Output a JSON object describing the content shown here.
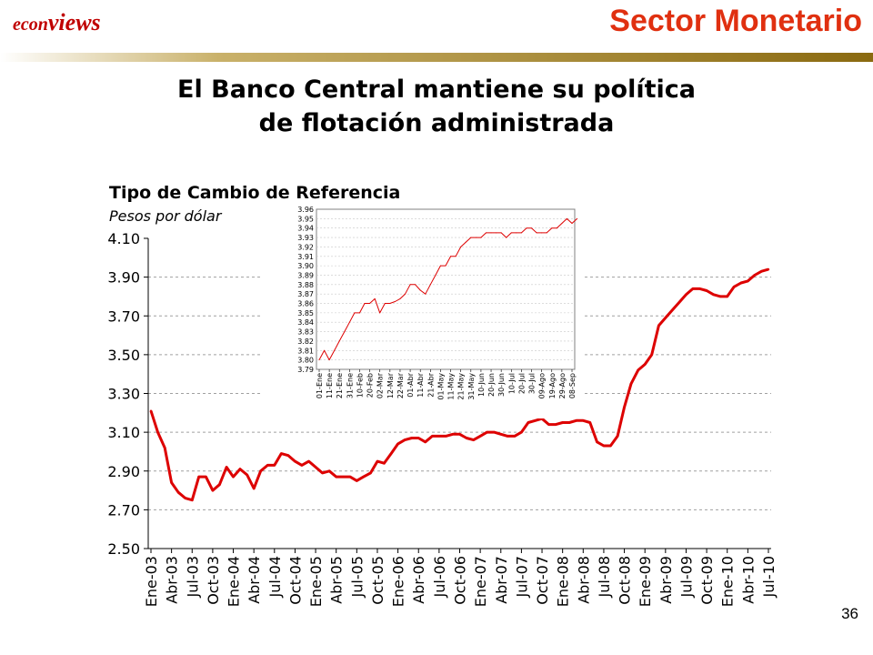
{
  "header": {
    "logo_prefix": "econ",
    "logo_suffix": "views",
    "section_title": "Sector Monetario"
  },
  "slide": {
    "title_line1": "El Banco Central mantiene su política",
    "title_line2": "de flotación administrada",
    "page_number": "36"
  },
  "colors": {
    "series": "#dd0000",
    "accent": "#c00000",
    "section": "#e03010"
  },
  "chart_data": [
    {
      "type": "line",
      "title": "Tipo de Cambio de Referencia",
      "subtitle": "Pesos por dólar",
      "xlabel": "",
      "ylabel": "",
      "ylim": [
        2.5,
        4.1
      ],
      "yticks": [
        "4.10",
        "3.90",
        "3.70",
        "3.50",
        "3.30",
        "3.10",
        "2.90",
        "2.70",
        "2.50"
      ],
      "categories": [
        "Ene-03",
        "Abr-03",
        "Jul-03",
        "Oct-03",
        "Ene-04",
        "Abr-04",
        "Jul-04",
        "Oct-04",
        "Ene-05",
        "Abr-05",
        "Jul-05",
        "Oct-05",
        "Ene-06",
        "Abr-06",
        "Jul-06",
        "Oct-06",
        "Ene-07",
        "Abr-07",
        "Jul-07",
        "Oct-07",
        "Ene-08",
        "Abr-08",
        "Jul-08",
        "Oct-08",
        "Ene-09",
        "Abr-09",
        "Jul-09",
        "Oct-09",
        "Ene-10",
        "Abr-10",
        "Jul-10"
      ],
      "grid": true,
      "series": [
        {
          "name": "",
          "x": [
            0,
            0.33,
            0.67,
            1,
            1.33,
            1.67,
            2,
            2.33,
            2.67,
            3,
            3.33,
            3.67,
            4,
            4.33,
            4.67,
            5,
            5.33,
            5.67,
            6,
            6.33,
            6.67,
            7,
            7.33,
            7.67,
            8,
            8.33,
            8.67,
            9,
            9.33,
            9.67,
            10,
            10.33,
            10.67,
            11,
            11.33,
            11.67,
            12,
            12.33,
            12.67,
            13,
            13.33,
            13.67,
            14,
            14.33,
            14.67,
            15,
            15.33,
            15.67,
            16,
            16.33,
            16.67,
            17,
            17.33,
            17.67,
            18,
            18.33,
            18.67,
            19,
            19.33,
            19.67,
            20,
            20.33,
            20.67,
            21,
            21.33,
            21.67,
            22,
            22.33,
            22.67,
            23,
            23.33,
            23.67,
            24,
            24.33,
            24.67,
            25,
            25.33,
            25.67,
            26,
            26.33,
            26.67,
            27,
            27.33,
            27.67,
            28,
            28.33,
            28.67,
            29,
            29.33,
            29.67,
            30
          ],
          "values": [
            3.21,
            3.1,
            3.02,
            2.84,
            2.79,
            2.76,
            2.75,
            2.87,
            2.87,
            2.8,
            2.83,
            2.92,
            2.87,
            2.91,
            2.88,
            2.81,
            2.9,
            2.93,
            2.93,
            2.99,
            2.98,
            2.95,
            2.93,
            2.95,
            2.92,
            2.89,
            2.9,
            2.87,
            2.87,
            2.87,
            2.85,
            2.87,
            2.89,
            2.95,
            2.94,
            2.99,
            3.04,
            3.06,
            3.07,
            3.07,
            3.05,
            3.08,
            3.08,
            3.08,
            3.09,
            3.09,
            3.07,
            3.06,
            3.08,
            3.1,
            3.1,
            3.09,
            3.08,
            3.08,
            3.1,
            3.15,
            3.16,
            3.17,
            3.14,
            3.14,
            3.15,
            3.15,
            3.16,
            3.16,
            3.15,
            3.05,
            3.03,
            3.03,
            3.08,
            3.23,
            3.35,
            3.42,
            3.45,
            3.5,
            3.65,
            3.69,
            3.73,
            3.77,
            3.81,
            3.84,
            3.84,
            3.83,
            3.81,
            3.8,
            3.8,
            3.85,
            3.87,
            3.88,
            3.91,
            3.93,
            3.94
          ]
        }
      ]
    },
    {
      "type": "line",
      "title": "",
      "ylim": [
        3.79,
        3.96
      ],
      "yticks": [
        "3.96",
        "3.95",
        "3.94",
        "3.93",
        "3.92",
        "3.91",
        "3.90",
        "3.89",
        "3.88",
        "3.87",
        "3.86",
        "3.85",
        "3.84",
        "3.83",
        "3.82",
        "3.81",
        "3.80",
        "3.79"
      ],
      "categories": [
        "01-Ene",
        "11-Ene",
        "21-Ene",
        "31-Ene",
        "10-Feb",
        "20-Feb",
        "02-Mar",
        "12-Mar",
        "22-Mar",
        "01-Abr",
        "11-Abr",
        "21-Abr",
        "01-May",
        "11-May",
        "21-May",
        "31-May",
        "10-Jun",
        "20-Jun",
        "30-Jun",
        "10-Jul",
        "20-Jul",
        "30-Jul",
        "09-Ago",
        "19-Ago",
        "29-Ago",
        "08-Sep"
      ],
      "grid": true,
      "series": [
        {
          "name": "",
          "x": [
            0,
            0.5,
            1,
            1.5,
            2,
            2.5,
            3,
            3.5,
            4,
            4.5,
            5,
            5.5,
            6,
            6.5,
            7,
            7.5,
            8,
            8.5,
            9,
            9.5,
            10,
            10.5,
            11,
            11.5,
            12,
            12.5,
            13,
            13.5,
            14,
            14.5,
            15,
            15.5,
            16,
            16.5,
            17,
            17.5,
            18,
            18.5,
            19,
            19.5,
            20,
            20.5,
            21,
            21.5,
            22,
            22.5,
            23,
            23.5,
            24,
            24.5,
            25,
            25.5
          ],
          "values": [
            3.8,
            3.81,
            3.8,
            3.81,
            3.82,
            3.83,
            3.84,
            3.85,
            3.85,
            3.86,
            3.86,
            3.865,
            3.85,
            3.86,
            3.86,
            3.862,
            3.865,
            3.87,
            3.88,
            3.88,
            3.874,
            3.87,
            3.88,
            3.89,
            3.9,
            3.9,
            3.91,
            3.91,
            3.92,
            3.925,
            3.93,
            3.93,
            3.93,
            3.935,
            3.935,
            3.935,
            3.935,
            3.93,
            3.935,
            3.935,
            3.935,
            3.94,
            3.94,
            3.935,
            3.935,
            3.935,
            3.94,
            3.94,
            3.945,
            3.95,
            3.945,
            3.95
          ]
        }
      ]
    }
  ]
}
